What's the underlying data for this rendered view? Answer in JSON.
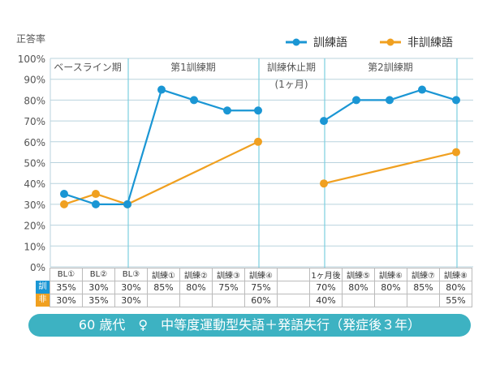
{
  "chart_data": {
    "type": "line",
    "ylabel": "正答率",
    "ylim": [
      0,
      100
    ],
    "yticks": [
      "0%",
      "10%",
      "20%",
      "30%",
      "40%",
      "50%",
      "60%",
      "70%",
      "80%",
      "90%",
      "100%"
    ],
    "grid": true,
    "legend_position": "top-right",
    "categories": [
      "BL①",
      "BL②",
      "BL③",
      "訓練①",
      "訓練②",
      "訓練③",
      "訓練④",
      "",
      "1ヶ月後",
      "訓練⑤",
      "訓練⑥",
      "訓練⑦",
      "訓練⑧"
    ],
    "periods": [
      "ベースライン期",
      "第1訓練期",
      "訓練休止期",
      "(1ヶ月)",
      "第2訓練期"
    ],
    "series": [
      {
        "name": "訓練語",
        "short": "訓",
        "color": "#1a96d4",
        "values": [
          35,
          30,
          30,
          85,
          80,
          75,
          75,
          null,
          70,
          80,
          80,
          85,
          80
        ]
      },
      {
        "name": "非訓練語",
        "short": "非",
        "color": "#f0a020",
        "values": [
          30,
          35,
          30,
          null,
          null,
          null,
          60,
          null,
          40,
          null,
          null,
          null,
          55
        ]
      }
    ]
  },
  "banner": "60 歳代　♀　中等度運動型失語＋発語失行（発症後３年）"
}
